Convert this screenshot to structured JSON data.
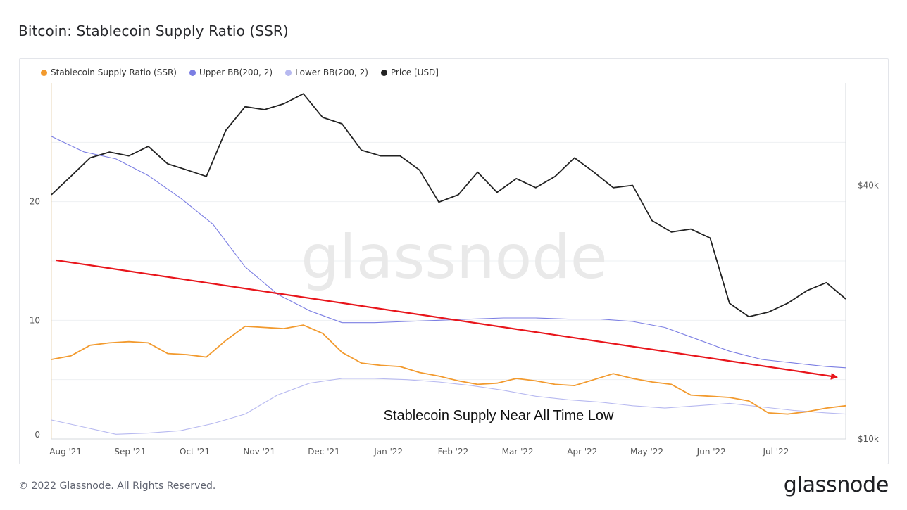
{
  "page": {
    "title": "Bitcoin: Stablecoin Supply Ratio (SSR)",
    "copyright": "© 2022 Glassnode. All Rights Reserved.",
    "brand": "glassnode"
  },
  "colors": {
    "ssr": "#f29a2e",
    "upper_bb": "#7b7ee3",
    "lower_bb": "#b7b9f0",
    "price": "#222222",
    "trend_arrow": "#e8151b",
    "watermark": "#e8e8e8"
  },
  "chart_data": {
    "type": "line",
    "title": "Bitcoin: Stablecoin Supply Ratio (SSR)",
    "annotation": "Stablecoin Supply Near All Time Low",
    "watermark": "glassnode",
    "legend": [
      {
        "name": "Stablecoin Supply Ratio (SSR)",
        "color": "#f29a2e"
      },
      {
        "name": "Upper BB(200, 2)",
        "color": "#7b7ee3"
      },
      {
        "name": "Lower BB(200, 2)",
        "color": "#b7b9f0"
      },
      {
        "name": "Price [USD]",
        "color": "#222222"
      }
    ],
    "x_ticks": [
      "Aug '21",
      "Sep '21",
      "Oct '21",
      "Nov '21",
      "Dec '21",
      "Jan '22",
      "Feb '22",
      "Mar '22",
      "Apr '22",
      "May '22",
      "Jun '22",
      "Jul '22"
    ],
    "x_range_months": [
      0,
      12.3
    ],
    "y_left": {
      "ticks": [
        "0",
        "10",
        "20"
      ],
      "range": [
        0,
        30
      ]
    },
    "y_right": {
      "ticks": [
        "$10k",
        "$40k"
      ],
      "scale": "log",
      "range": [
        10000,
        70000
      ]
    },
    "series": [
      {
        "name": "Stablecoin Supply Ratio (SSR)",
        "axis": "left",
        "x": [
          0,
          0.3,
          0.6,
          0.9,
          1.2,
          1.5,
          1.8,
          2.1,
          2.4,
          2.7,
          3.0,
          3.3,
          3.6,
          3.9,
          4.2,
          4.5,
          4.8,
          5.1,
          5.4,
          5.7,
          6.0,
          6.3,
          6.6,
          6.9,
          7.2,
          7.5,
          7.8,
          8.1,
          8.4,
          8.7,
          9.0,
          9.3,
          9.6,
          9.9,
          10.2,
          10.5,
          10.8,
          11.1,
          11.4,
          11.7,
          12.0,
          12.3
        ],
        "values": [
          6.7,
          7.0,
          7.9,
          8.1,
          8.2,
          8.1,
          7.2,
          7.1,
          6.9,
          8.3,
          9.5,
          9.4,
          9.3,
          9.6,
          8.9,
          7.3,
          6.4,
          6.2,
          6.1,
          5.6,
          5.3,
          4.9,
          4.6,
          4.7,
          5.1,
          4.9,
          4.6,
          4.5,
          5.0,
          5.5,
          5.1,
          4.8,
          4.6,
          3.7,
          3.6,
          3.5,
          3.2,
          2.2,
          2.1,
          2.3,
          2.6,
          2.8
        ]
      },
      {
        "name": "Upper BB(200, 2)",
        "axis": "left",
        "x": [
          0,
          0.5,
          1.0,
          1.5,
          2.0,
          2.5,
          3.0,
          3.5,
          4.0,
          4.5,
          5.0,
          5.5,
          6.0,
          6.5,
          7.0,
          7.5,
          8.0,
          8.5,
          9.0,
          9.5,
          10.0,
          10.5,
          11.0,
          11.5,
          12.0,
          12.3
        ],
        "values": [
          25.5,
          24.2,
          23.6,
          22.2,
          20.3,
          18.1,
          14.5,
          12.2,
          10.8,
          9.8,
          9.8,
          9.9,
          10.0,
          10.1,
          10.2,
          10.2,
          10.1,
          10.1,
          9.9,
          9.4,
          8.4,
          7.4,
          6.7,
          6.4,
          6.1,
          6.0
        ]
      },
      {
        "name": "Lower BB(200, 2)",
        "axis": "left",
        "x": [
          0,
          0.5,
          1.0,
          1.5,
          2.0,
          2.5,
          3.0,
          3.5,
          4.0,
          4.5,
          5.0,
          5.5,
          6.0,
          6.5,
          7.0,
          7.5,
          8.0,
          8.5,
          9.0,
          9.5,
          10.0,
          10.5,
          11.0,
          11.5,
          12.0,
          12.3
        ],
        "values": [
          1.6,
          1.0,
          0.4,
          0.5,
          0.7,
          1.3,
          2.1,
          3.7,
          4.7,
          5.1,
          5.1,
          5.0,
          4.8,
          4.5,
          4.1,
          3.6,
          3.3,
          3.1,
          2.8,
          2.6,
          2.8,
          3.0,
          2.7,
          2.4,
          2.2,
          2.1
        ]
      },
      {
        "name": "Price [USD]",
        "axis": "right",
        "x": [
          0,
          0.3,
          0.6,
          0.9,
          1.2,
          1.5,
          1.8,
          2.1,
          2.4,
          2.7,
          3.0,
          3.3,
          3.6,
          3.9,
          4.2,
          4.5,
          4.8,
          5.1,
          5.4,
          5.7,
          6.0,
          6.3,
          6.6,
          6.9,
          7.2,
          7.5,
          7.8,
          8.1,
          8.4,
          8.7,
          9.0,
          9.3,
          9.6,
          9.9,
          10.2,
          10.5,
          10.8,
          11.1,
          11.4,
          11.7,
          12.0,
          12.3
        ],
        "values": [
          38000,
          42000,
          46500,
          48000,
          47000,
          49500,
          45000,
          43500,
          42000,
          54000,
          61500,
          60500,
          62500,
          66000,
          58000,
          56000,
          48500,
          47000,
          47000,
          43500,
          36500,
          38000,
          43000,
          38500,
          41500,
          39500,
          42000,
          46500,
          43000,
          39500,
          40000,
          33000,
          31000,
          31500,
          30000,
          21000,
          19500,
          20000,
          21000,
          22500,
          23500,
          21500
        ]
      }
    ]
  }
}
